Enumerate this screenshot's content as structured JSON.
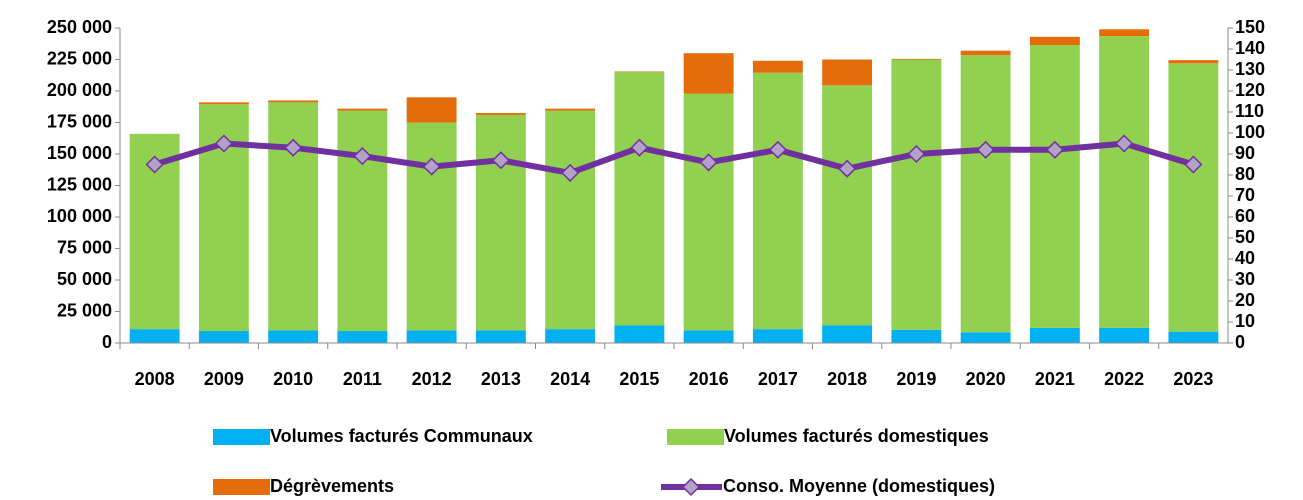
{
  "chart_data": {
    "type": "bar",
    "categories": [
      "2008",
      "2009",
      "2010",
      "2011",
      "2012",
      "2013",
      "2014",
      "2015",
      "2016",
      "2017",
      "2018",
      "2019",
      "2020",
      "2021",
      "2022",
      "2023"
    ],
    "series": [
      {
        "name": "Volumes facturés Communaux",
        "color": "#00b0f0",
        "values": [
          11000,
          9500,
          10000,
          9500,
          10000,
          10000,
          11000,
          14000,
          10000,
          11000,
          14000,
          10500,
          8500,
          12000,
          12000,
          9000
        ]
      },
      {
        "name": "Volumes facturés domestiques",
        "color": "#92d050",
        "values": [
          155000,
          180000,
          181000,
          175000,
          165000,
          171000,
          173500,
          201000,
          188000,
          203500,
          190500,
          214500,
          220000,
          224500,
          231500,
          213000
        ]
      },
      {
        "name": "Dégrèvements",
        "color": "#e46c0a",
        "values": [
          0,
          1500,
          1500,
          1500,
          20000,
          1500,
          1500,
          500,
          32000,
          9500,
          20500,
          500,
          3500,
          6500,
          5500,
          2500
        ]
      },
      {
        "name": "Conso. Moyenne (domestiques)",
        "color": "#7030a0",
        "type": "line",
        "axis": "y2",
        "values": [
          85,
          95,
          93,
          89,
          84,
          87,
          81,
          93,
          86,
          92,
          83,
          90,
          92,
          92,
          95,
          85
        ]
      }
    ],
    "stacked": true,
    "ylim": [
      0,
      250000
    ],
    "yticks": [
      0,
      {
        "value": 25000,
        "label": "25 000"
      },
      {
        "value": 50000,
        "label": "50 000"
      },
      {
        "value": 75000,
        "label": "75 000"
      },
      {
        "value": 100000,
        "label": "100 000"
      },
      {
        "value": 125000,
        "label": "125 000"
      },
      {
        "value": 150000,
        "label": "150 000"
      },
      {
        "value": 175000,
        "label": "175 000"
      },
      {
        "value": 200000,
        "label": "200 000"
      },
      {
        "value": 225000,
        "label": "225 000"
      },
      {
        "value": 250000,
        "label": "250 000"
      }
    ],
    "y2lim": [
      0,
      150
    ],
    "y2ticks": [
      0,
      10,
      20,
      30,
      40,
      50,
      60,
      70,
      80,
      90,
      100,
      110,
      120,
      130,
      140,
      150
    ],
    "grid": false,
    "legend": "bottom"
  }
}
